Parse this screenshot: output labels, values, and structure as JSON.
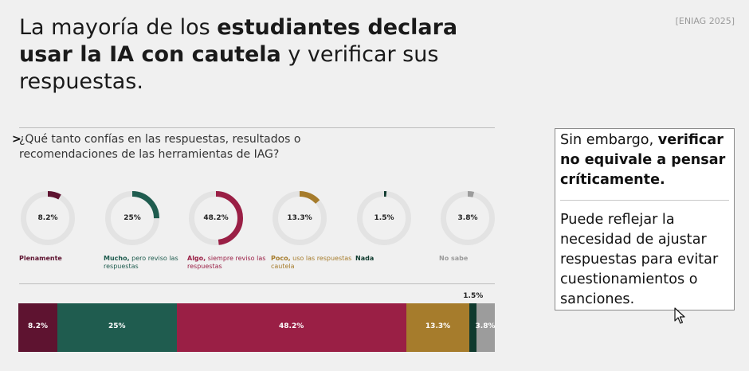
{
  "headline": {
    "parts": [
      {
        "text": "La mayoría de los ",
        "bold": false
      },
      {
        "text": "estudiantes declara usar la IA con cautela",
        "bold": true
      },
      {
        "text": " y verificar sus respuestas.",
        "bold": false
      }
    ]
  },
  "source": "[ENIAG 2025]",
  "question": {
    "marker": ">",
    "text": "¿Qué tanto confías en las respuestas, resultados o recomendaciones de las herramientas de IAG?"
  },
  "chart_data": {
    "type": "bar",
    "categories": [
      "Plenamente",
      "Mucho",
      "Algo",
      "Poco",
      "Nada",
      "No sabe"
    ],
    "values": [
      8.2,
      25,
      48.2,
      13.3,
      1.5,
      3.8
    ],
    "unit": "%",
    "value_labels": [
      "8.2%",
      "25%",
      "48.2%",
      "13.3%",
      "1.5%",
      "3.8%"
    ],
    "donut_captions": [
      {
        "bold": "Plenamente",
        "rest": ""
      },
      {
        "bold": "Mucho,",
        "rest": " pero reviso las respuestas"
      },
      {
        "bold": "Algo,",
        "rest": " siempre reviso las respuestas"
      },
      {
        "bold": "Poco,",
        "rest": " uso las respuestas cautela"
      },
      {
        "bold": "Nada",
        "rest": ""
      },
      {
        "bold": "No sabe",
        "rest": ""
      }
    ],
    "colors": [
      "#5e1330",
      "#1f5c4f",
      "#9a1f45",
      "#a67c2c",
      "#0f3a2e",
      "#9c9c9c"
    ],
    "track_color": "#e3e3e3",
    "chart_forms": [
      "donut",
      "stacked-bar"
    ]
  },
  "side_box": {
    "para1": [
      {
        "text": "Sin embargo, ",
        "bold": false
      },
      {
        "text": "verificar no equivale a pensar críticamente.",
        "bold": true
      }
    ],
    "para2": "Puede reflejar la necesidad de ajustar respuestas para evitar cuestionamientos o sanciones."
  },
  "cursor_icon": "arrow-pointer-icon"
}
